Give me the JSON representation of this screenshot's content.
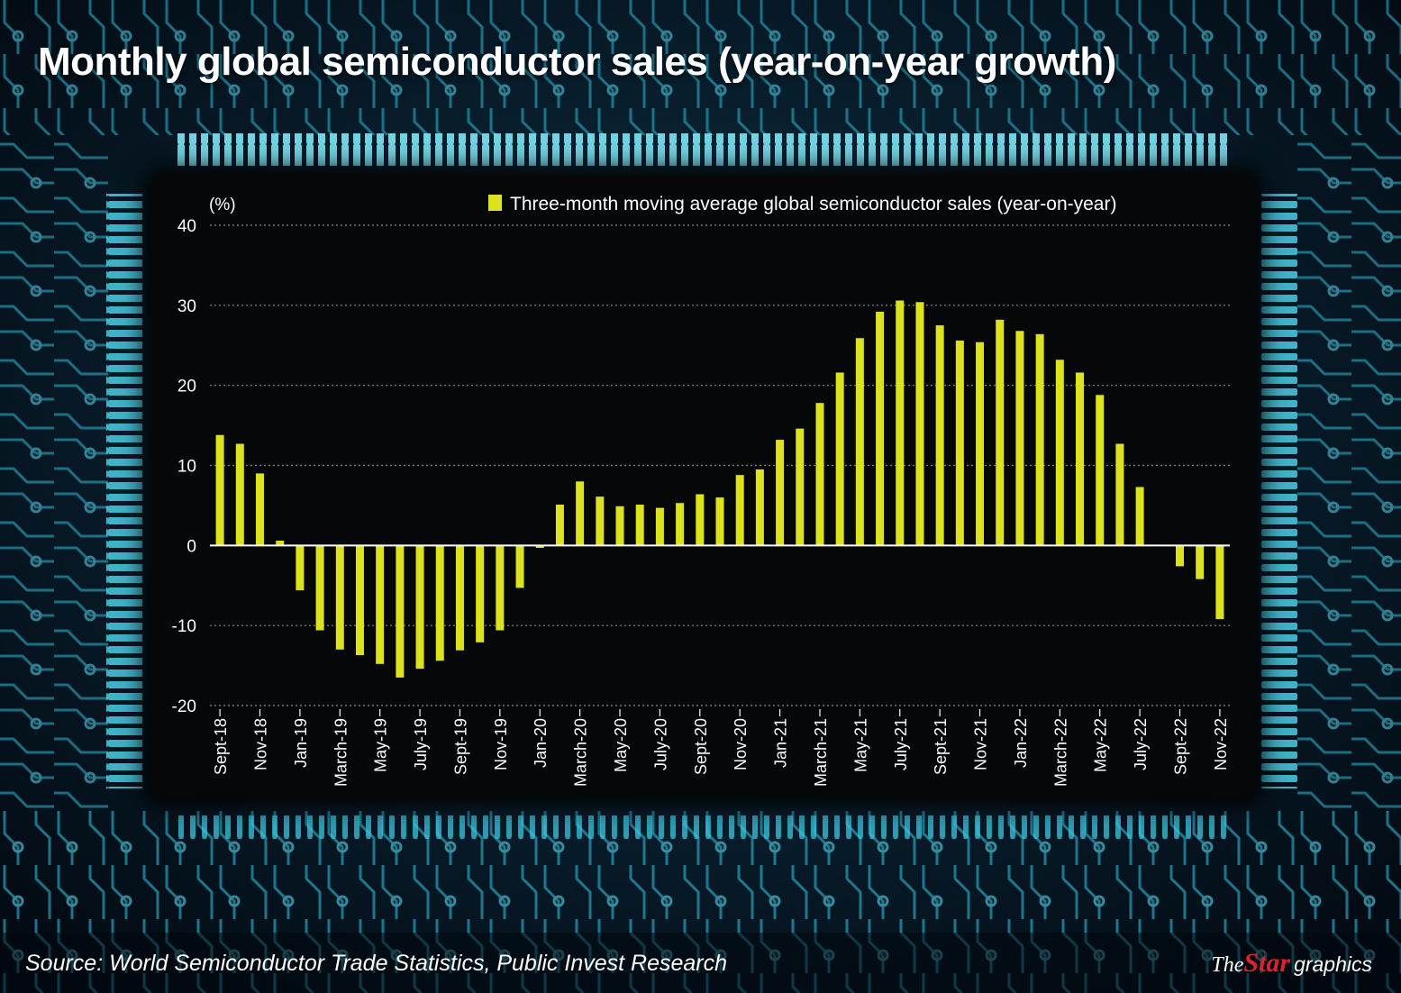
{
  "title": "Monthly global semiconductor sales (year-on-year growth)",
  "source": "Source: World Semiconductor Trade Statistics, Public Invest Research",
  "brand": {
    "the": "The",
    "star": "Star",
    "graphics": "graphics"
  },
  "colors": {
    "bar": "#dce21d",
    "text": "#ffffff",
    "grid": "#8a8a8a",
    "background": "#050708",
    "circuit": "#4fd8f0"
  },
  "chart_data": {
    "type": "bar",
    "title": "Monthly global semiconductor sales (year-on-year growth)",
    "ylabel": "(%)",
    "xlabel": "",
    "ylim": [
      -20,
      40
    ],
    "yticks": [
      40,
      30,
      20,
      10,
      0,
      -10,
      -20
    ],
    "grid": true,
    "legend_position": "top-right",
    "series": [
      {
        "name": "Three-month moving average global semiconductor sales (year-on-year)",
        "color": "#dce21d"
      }
    ],
    "categories": [
      "Sept-18",
      "Oct-18",
      "Nov-18",
      "Dec-18",
      "Jan-19",
      "Feb-19",
      "March-19",
      "April-19",
      "May-19",
      "June-19",
      "July-19",
      "Aug-19",
      "Sept-19",
      "Oct-19",
      "Nov-19",
      "Dec-19",
      "Jan-20",
      "Feb-20",
      "March-20",
      "April-20",
      "May-20",
      "June-20",
      "July-20",
      "Aug-20",
      "Sept-20",
      "Oct-20",
      "Nov-20",
      "Dec-20",
      "Jan-21",
      "Feb-21",
      "March-21",
      "April-21",
      "May-21",
      "June-21",
      "July-21",
      "Aug-21",
      "Sept-21",
      "Oct-21",
      "Nov-21",
      "Dec-21",
      "Jan-22",
      "Feb-22",
      "March-22",
      "April-22",
      "May-22",
      "June-22",
      "July-22",
      "Aug-22",
      "Sept-22",
      "Oct-22",
      "Nov-22"
    ],
    "tick_labels": [
      "Sept-18",
      "Nov-18",
      "Jan-19",
      "March-19",
      "May-19",
      "July-19",
      "Sept-19",
      "Nov-19",
      "Jan-20",
      "March-20",
      "May-20",
      "July-20",
      "Sept-20",
      "Nov-20",
      "Jan-21",
      "March-21",
      "May-21",
      "July-21",
      "Sept-21",
      "Nov-21",
      "Jan-22",
      "March-22",
      "May-22",
      "July-22",
      "Sept-22",
      "Nov-22"
    ],
    "values": [
      13.8,
      12.7,
      9.0,
      0.6,
      -5.6,
      -10.6,
      -13.0,
      -13.7,
      -14.8,
      -16.5,
      -15.4,
      -14.4,
      -13.1,
      -12.1,
      -10.6,
      -5.3,
      -0.3,
      5.1,
      8.0,
      6.1,
      4.9,
      5.1,
      4.7,
      5.3,
      6.4,
      6.0,
      8.8,
      9.5,
      13.2,
      14.6,
      17.8,
      21.6,
      25.9,
      29.2,
      30.6,
      30.4,
      27.5,
      25.6,
      25.4,
      28.2,
      26.8,
      26.4,
      23.2,
      21.6,
      18.8,
      12.7,
      7.3,
      0.0,
      -2.6,
      -4.2,
      -9.2
    ]
  }
}
